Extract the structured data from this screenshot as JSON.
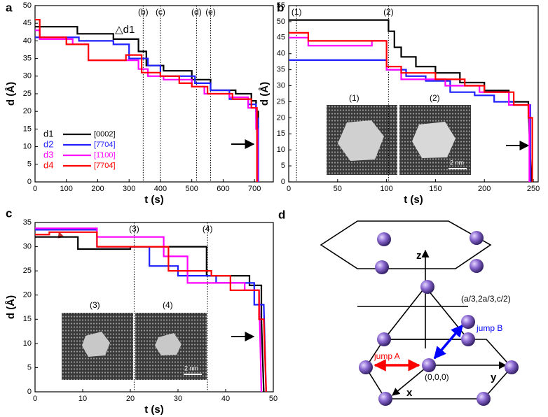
{
  "chart_data": [
    {
      "type": "line",
      "panel": "a",
      "xlabel": "t (s)",
      "ylabel": "d (Å)",
      "xlim": [
        0,
        760
      ],
      "xticks": [
        0,
        100,
        200,
        300,
        400,
        500,
        600,
        700
      ],
      "ylim": [
        0,
        50
      ],
      "yticks": [
        0,
        5,
        10,
        15,
        20,
        25,
        30,
        35,
        40,
        45,
        50
      ],
      "legend": "lower left",
      "annotations": [
        {
          "label": "(b)",
          "x": 345
        },
        {
          "label": "(c)",
          "x": 400
        },
        {
          "label": "(d)",
          "x": 515
        },
        {
          "label": "(e)",
          "x": 560
        }
      ],
      "note": {
        "text": "△d1",
        "x": 255,
        "y": 43
      },
      "series": [
        {
          "name": "d1",
          "miller": "[0002]",
          "color": "#000000",
          "x": [
            0,
            135,
            135,
            250,
            250,
            330,
            330,
            355,
            355,
            410,
            410,
            500,
            500,
            560,
            560,
            640,
            640,
            690,
            690,
            705,
            705,
            712,
            712
          ],
          "values": [
            44,
            44,
            42,
            42,
            40.5,
            40.5,
            37,
            37,
            33,
            33,
            31.5,
            31.5,
            29,
            29,
            26,
            26,
            25,
            25,
            23,
            23,
            20,
            20,
            0
          ]
        },
        {
          "name": "d2",
          "miller": "[7̄704]",
          "color": "#1f1fff",
          "x": [
            0,
            140,
            140,
            250,
            250,
            300,
            300,
            360,
            360,
            400,
            400,
            510,
            510,
            560,
            560,
            620,
            620,
            680,
            680,
            705,
            705,
            712,
            712
          ],
          "values": [
            41,
            41,
            40,
            40,
            39,
            39,
            35,
            35,
            33,
            33,
            30,
            30,
            28,
            28,
            26,
            26,
            23.5,
            23.5,
            22,
            22,
            18,
            18,
            0
          ]
        },
        {
          "name": "d3",
          "miller": "[1̄100]",
          "color": "#ff00ff",
          "x": [
            0,
            15,
            15,
            120,
            120,
            170,
            170,
            330,
            330,
            360,
            360,
            410,
            410,
            500,
            500,
            540,
            540,
            620,
            620,
            680,
            680,
            705,
            705,
            710,
            710
          ],
          "values": [
            43,
            43,
            40.5,
            40.5,
            39,
            39,
            34.5,
            34.5,
            32,
            32,
            30,
            30,
            29,
            29,
            27,
            27,
            25,
            25,
            24,
            24,
            21,
            21,
            15,
            15,
            0
          ]
        },
        {
          "name": "d4",
          "miller": "[7̄704̄]",
          "color": "#ff0000",
          "x": [
            0,
            15,
            15,
            100,
            100,
            170,
            170,
            290,
            290,
            340,
            340,
            400,
            400,
            460,
            460,
            500,
            500,
            550,
            550,
            630,
            630,
            690,
            690,
            708,
            708
          ],
          "values": [
            46,
            46,
            41,
            41,
            39,
            39,
            34.5,
            34.5,
            36,
            36,
            31,
            31,
            30,
            30,
            28,
            28,
            27,
            27,
            25,
            25,
            23.5,
            23.5,
            21,
            21,
            0
          ]
        }
      ]
    },
    {
      "type": "line",
      "panel": "b",
      "xlabel": "t (s)",
      "ylabel": "d (Å)",
      "xlim": [
        0,
        255
      ],
      "xticks": [
        0,
        50,
        100,
        150,
        200,
        250
      ],
      "ylim": [
        0,
        55
      ],
      "yticks": [
        0,
        5,
        10,
        15,
        20,
        25,
        30,
        35,
        40,
        45,
        50,
        55
      ],
      "annotations": [
        {
          "label": "(1)",
          "x": 8
        },
        {
          "label": "(2)",
          "x": 102
        }
      ],
      "insets": [
        "(1)",
        "(2)"
      ],
      "scale_bar": "2 nm",
      "series": [
        {
          "name": "d1",
          "color": "#000000",
          "x": [
            0,
            102,
            102,
            108,
            108,
            115,
            115,
            130,
            130,
            150,
            150,
            175,
            175,
            200,
            200,
            225,
            225,
            245,
            245,
            248
          ],
          "values": [
            50.5,
            50.5,
            47,
            47,
            42,
            42,
            39,
            39,
            36,
            36,
            34,
            34,
            31,
            31,
            28.5,
            28.5,
            25,
            25,
            23,
            0
          ]
        },
        {
          "name": "d2",
          "color": "#1f1fff",
          "x": [
            0,
            100,
            100,
            120,
            120,
            140,
            140,
            165,
            165,
            190,
            190,
            210,
            210,
            230,
            230,
            247,
            247
          ],
          "values": [
            38,
            38,
            35,
            35,
            33,
            33,
            31.5,
            31.5,
            28,
            28,
            27,
            27,
            25,
            25,
            24,
            24,
            0
          ]
        },
        {
          "name": "d3",
          "color": "#ff00ff",
          "x": [
            0,
            20,
            20,
            85,
            85,
            100,
            100,
            115,
            115,
            160,
            160,
            195,
            195,
            225,
            225,
            246,
            246
          ],
          "values": [
            45,
            45,
            42.5,
            42.5,
            44,
            44,
            35,
            35,
            32,
            32,
            30,
            30,
            28,
            28,
            24,
            24,
            0
          ]
        },
        {
          "name": "d4",
          "color": "#ff0000",
          "x": [
            0,
            20,
            20,
            100,
            100,
            115,
            115,
            150,
            150,
            180,
            180,
            200,
            200,
            230,
            230,
            245,
            245,
            249,
            249
          ],
          "values": [
            46.5,
            46.5,
            44,
            44,
            36,
            36,
            34,
            34,
            32,
            32,
            30,
            30,
            28,
            28,
            24,
            24,
            20,
            20,
            0
          ]
        }
      ]
    },
    {
      "type": "line",
      "panel": "c",
      "xlabel": "t (s)",
      "ylabel": "d (Å)",
      "xlim": [
        0,
        50
      ],
      "xticks": [
        0,
        10,
        20,
        30,
        40,
        50
      ],
      "ylim": [
        0,
        35
      ],
      "yticks": [
        0,
        5,
        10,
        15,
        20,
        25,
        30,
        35
      ],
      "annotations": [
        {
          "label": "(3)",
          "x": 20.8
        },
        {
          "label": "(4)",
          "x": 36.2
        }
      ],
      "insets": [
        "(3)",
        "(4)"
      ],
      "scale_bar": "2 nm",
      "series": [
        {
          "name": "d1",
          "color": "#000000",
          "x": [
            0,
            9,
            9,
            20,
            20,
            36,
            36,
            45,
            45,
            47.5,
            47.5,
            48
          ],
          "values": [
            32,
            32,
            29.5,
            29.5,
            30,
            30,
            24,
            24,
            22,
            22,
            15,
            0
          ]
        },
        {
          "name": "d2",
          "color": "#1f1fff",
          "x": [
            0,
            13,
            13,
            24,
            24,
            30,
            30,
            38,
            38,
            46,
            46,
            48,
            48.5
          ],
          "values": [
            33.5,
            33.5,
            30,
            30,
            26,
            26,
            24,
            24,
            22.5,
            22.5,
            18,
            18,
            0
          ]
        },
        {
          "name": "d3",
          "color": "#ff00ff",
          "x": [
            0,
            13,
            13,
            27,
            27,
            32,
            32,
            44,
            44,
            47,
            47.5
          ],
          "values": [
            33.8,
            33.8,
            32,
            32,
            28,
            28,
            22.5,
            22.5,
            21,
            21,
            0
          ]
        },
        {
          "name": "d4",
          "color": "#ff0000",
          "x": [
            0,
            3,
            3,
            13,
            13,
            28,
            28,
            37,
            37,
            41,
            41,
            47,
            47,
            48,
            48.5
          ],
          "values": [
            32.5,
            32.5,
            33,
            33,
            30,
            30,
            25,
            25,
            24,
            24,
            21,
            21,
            15,
            15,
            0
          ]
        }
      ]
    }
  ],
  "diagram": {
    "panel": "d",
    "z": "z",
    "y": "y",
    "x": "x",
    "site": "(a/3,2a/3,c/2)",
    "origin": "(0,0,0)",
    "jump_a": "jump A",
    "jump_b": "jump B"
  }
}
